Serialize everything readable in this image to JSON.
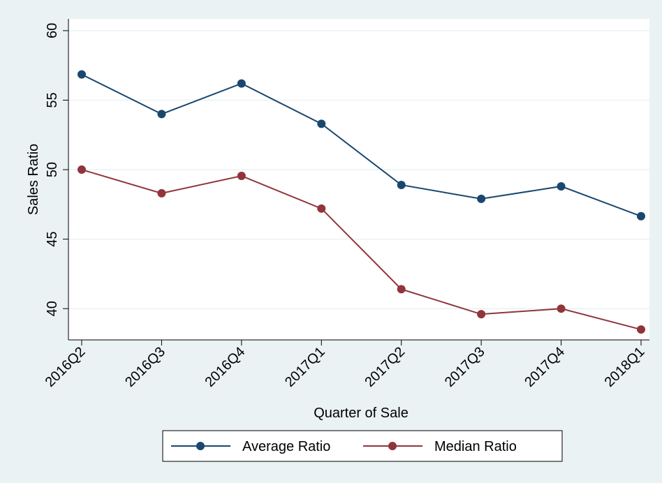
{
  "chart_data": {
    "type": "line",
    "x_label": "Quarter of Sale",
    "y_label": "Sales Ratio",
    "categories": [
      "2016Q2",
      "2016Q3",
      "2016Q4",
      "2017Q1",
      "2017Q2",
      "2017Q3",
      "2017Q4",
      "2018Q1"
    ],
    "series": [
      {
        "name": "Average Ratio",
        "color": "#1a476f",
        "values": [
          56.85,
          54.0,
          56.2,
          53.3,
          48.9,
          47.9,
          48.8,
          46.65
        ]
      },
      {
        "name": "Median Ratio",
        "color": "#90353b",
        "values": [
          50.0,
          48.3,
          49.55,
          47.2,
          41.4,
          39.6,
          40.0,
          38.5
        ]
      }
    ],
    "ylim": [
      37.75,
      60.85
    ],
    "yticks": [
      40,
      45,
      50,
      55,
      60
    ],
    "grid": true,
    "legend": "bottom"
  }
}
